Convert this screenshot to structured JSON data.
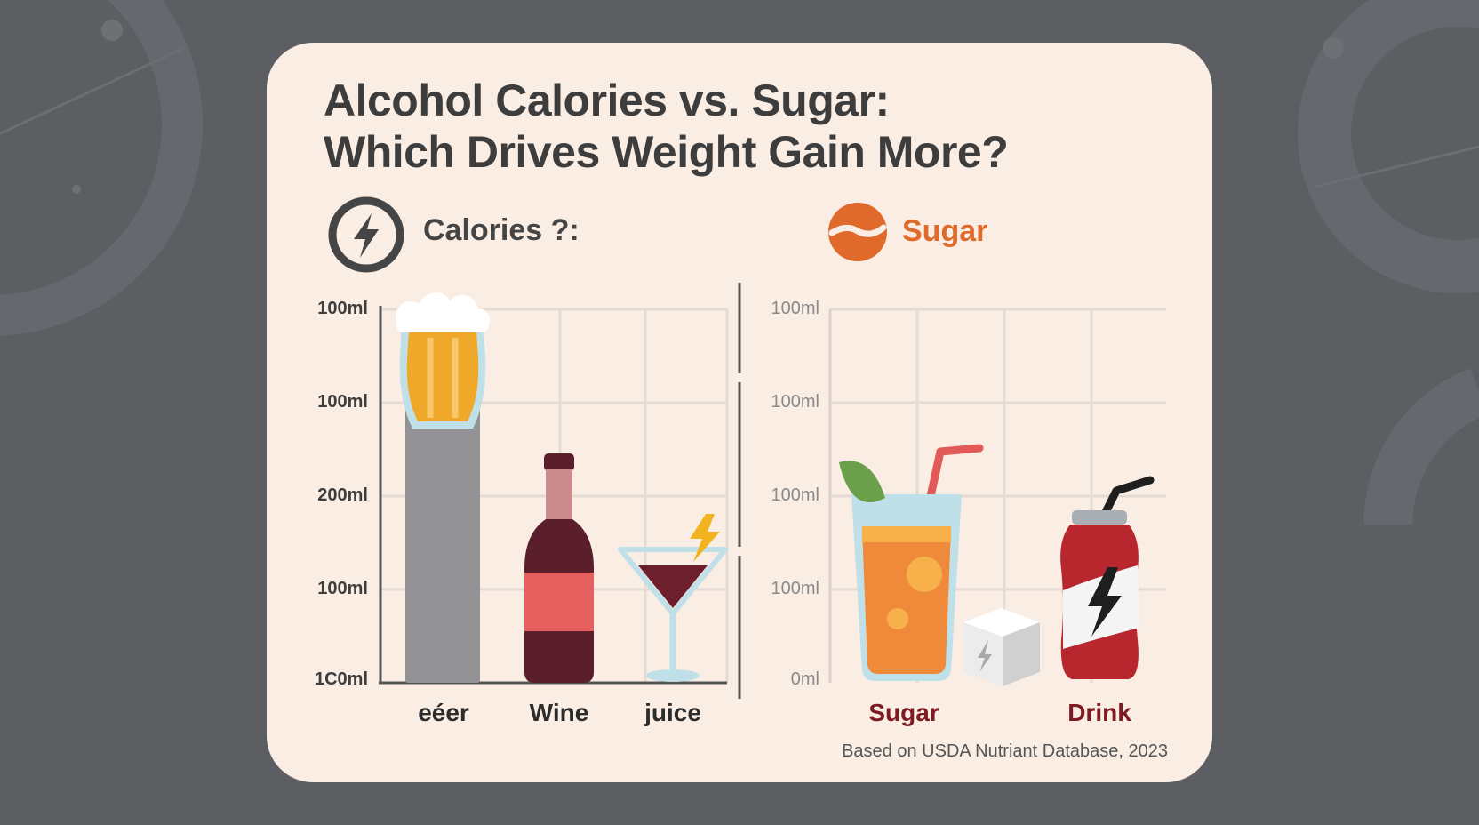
{
  "title_line1": "Alcohol Calories vs. Sugar:",
  "title_line2": "Which Drives Weight Gain More?",
  "legend": {
    "calories_label": "Calories ?:",
    "calories_icon": "lightning-bolt-icon",
    "sugar_label": "Sugar",
    "sugar_icon": "orange-wave-icon"
  },
  "source": "Based on USDA Nutriant Database, 2023",
  "colors": {
    "background": "#5c5e62",
    "card": "#f9ede4",
    "grid": "#e6dbd4",
    "axis": "#555555",
    "bar_gray": "#939396",
    "wine": "#5a1f2a",
    "wine_label": "#e85f5f",
    "beer": "#f0a82a",
    "juice_orange": "#ef8a3a",
    "can_red": "#b8262e",
    "sugar_accent": "#e06a2c",
    "drink_label": "#7d1a22"
  },
  "chart_data": [
    {
      "type": "bar",
      "title": "Calories ?:",
      "y_tick_labels": [
        "100ml",
        "100ml",
        "200ml",
        "100ml",
        "1C0ml"
      ],
      "categories": [
        "eéer",
        "Wine",
        "juice"
      ],
      "values": [
        0.84,
        0,
        0
      ],
      "icons": [
        "beer-glass-icon",
        "wine-bottle-icon",
        "cocktail-glass-icon"
      ],
      "grid": true
    },
    {
      "type": "bar",
      "title": "Sugar",
      "y_tick_labels": [
        "100ml",
        "100ml",
        "100ml",
        "100ml",
        "0ml"
      ],
      "categories": [
        "Sugar",
        "Drink"
      ],
      "values": [
        0,
        0
      ],
      "icons": [
        "juice-glass-icon",
        "soda-can-icon"
      ],
      "grid": true
    }
  ]
}
